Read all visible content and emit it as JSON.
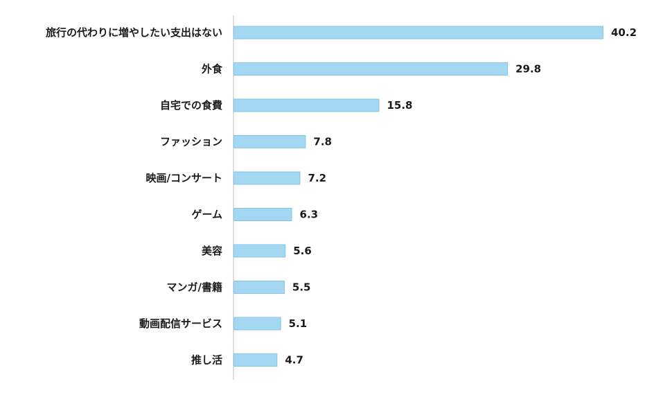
{
  "chart_data": {
    "type": "bar",
    "orientation": "horizontal",
    "categories": [
      "旅行の代わりに増やしたい支出はない",
      "外食",
      "自宅での食費",
      "ファッション",
      "映画/コンサート",
      "ゲーム",
      "美容",
      "マンガ/書籍",
      "動画配信サービス",
      "推し活"
    ],
    "values": [
      40.2,
      29.8,
      15.8,
      7.8,
      7.2,
      6.3,
      5.6,
      5.5,
      5.1,
      4.7
    ],
    "value_labels": [
      "40.2",
      "29.8",
      "15.8",
      "7.8",
      "7.2",
      "6.3",
      "5.6",
      "5.5",
      "5.1",
      "4.7"
    ],
    "title": "",
    "xlabel": "",
    "ylabel": "",
    "xlim": [
      0,
      40.2
    ],
    "grid": false,
    "legend": "none",
    "colors": {
      "bar_fill": "#a4d8f2",
      "bar_stroke": "#86c4e6",
      "axis": "#bfbfbf",
      "text": "#1a1a1a"
    }
  }
}
